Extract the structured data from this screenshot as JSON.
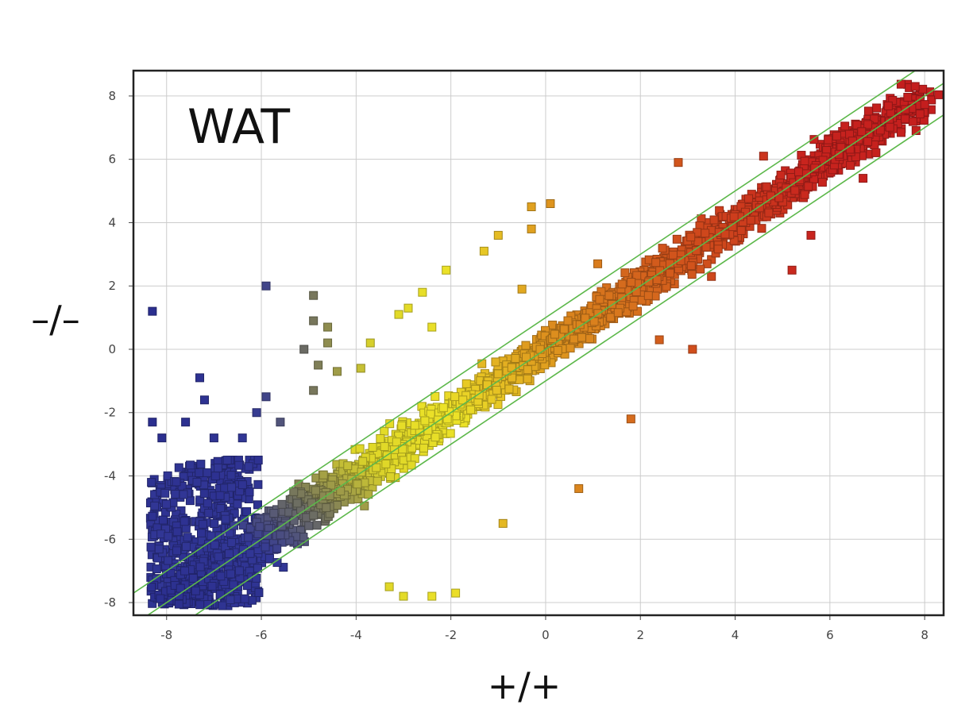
{
  "chart_data": {
    "type": "scatter",
    "title": "",
    "panel_label": "WAT",
    "xlabel": "+/+",
    "ylabel": "–/–",
    "xlim": [
      -8.7,
      8.4
    ],
    "ylim": [
      -8.4,
      8.8
    ],
    "x_ticks": [
      -8,
      -6,
      -4,
      -2,
      0,
      2,
      4,
      6,
      8
    ],
    "y_ticks": [
      -8,
      -6,
      -4,
      -2,
      0,
      2,
      4,
      6,
      8
    ],
    "grid": true,
    "legend": "none",
    "reference_lines": [
      {
        "slope": 1,
        "intercept": 1
      },
      {
        "slope": 1,
        "intercept": 0
      },
      {
        "slope": 1,
        "intercept": -1
      }
    ],
    "colors": {
      "low": "#2b2f8f",
      "mid_low": "#6f7060",
      "mid": "#e6e12a",
      "mid_high": "#d98a1e",
      "high": "#c8241e",
      "reference_line": "#5cb84a",
      "grid": "#cccccc",
      "frame": "#222222"
    },
    "series": [
      {
        "points": [
          [
            -8.3,
            1.2
          ],
          [
            -5.9,
            2.0
          ],
          [
            -7.3,
            -0.9
          ],
          [
            -7.2,
            -1.6
          ],
          [
            -5.9,
            -1.5
          ],
          [
            -6.1,
            -2.0
          ],
          [
            -8.3,
            -2.3
          ],
          [
            -7.6,
            -2.3
          ],
          [
            -8.1,
            -2.8
          ],
          [
            -7.0,
            -2.8
          ],
          [
            -6.4,
            -2.8
          ],
          [
            -5.6,
            -2.3
          ],
          [
            -4.9,
            1.7
          ],
          [
            -4.9,
            0.9
          ],
          [
            -4.6,
            0.7
          ],
          [
            -5.1,
            0.0
          ],
          [
            -4.6,
            0.2
          ],
          [
            -4.8,
            -0.5
          ],
          [
            -4.4,
            -0.7
          ],
          [
            -4.9,
            -1.3
          ],
          [
            -3.7,
            0.2
          ],
          [
            -3.9,
            -0.6
          ],
          [
            -2.9,
            1.3
          ],
          [
            -3.1,
            1.1
          ],
          [
            -2.1,
            2.5
          ],
          [
            -2.6,
            1.8
          ],
          [
            -2.4,
            0.7
          ],
          [
            -0.3,
            4.5
          ],
          [
            0.1,
            4.6
          ],
          [
            -0.3,
            3.8
          ],
          [
            -1.3,
            3.1
          ],
          [
            -1.0,
            3.6
          ],
          [
            1.1,
            2.7
          ],
          [
            -1.9,
            -7.7
          ],
          [
            -2.4,
            -7.8
          ],
          [
            -3.0,
            -7.8
          ],
          [
            -3.3,
            -7.5
          ],
          [
            -0.9,
            -5.5
          ],
          [
            0.7,
            -4.4
          ],
          [
            1.8,
            -2.2
          ],
          [
            2.8,
            5.9
          ],
          [
            4.6,
            6.1
          ],
          [
            5.2,
            2.5
          ],
          [
            5.6,
            3.6
          ],
          [
            6.7,
            5.4
          ],
          [
            7.8,
            8.3
          ],
          [
            3.5,
            2.3
          ],
          [
            2.4,
            0.3
          ],
          [
            3.1,
            0.0
          ],
          [
            -0.5,
            1.9
          ]
        ]
      }
    ],
    "density_description": "Dense diagonal band of several thousand points along y = x from (-8,-8) to (8,8), colored blue at low values through gray, yellow, orange to red at high values; a dense blue block fills x in [-8.3,-6], y in [-8.1,-3.5]."
  }
}
